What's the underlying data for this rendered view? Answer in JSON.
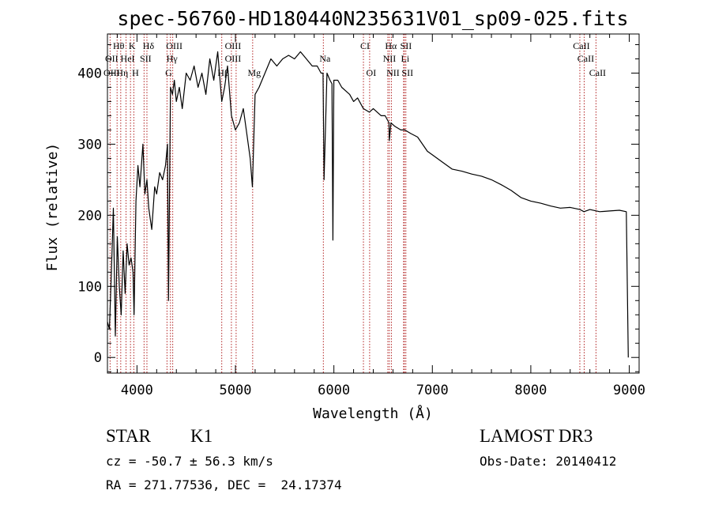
{
  "chart_data": {
    "type": "line",
    "title": "spec-56760-HD180440N235631V01_sp09-025.fits",
    "xlabel": "Wavelength (Å)",
    "ylabel": "Flux (relative)",
    "xlim": [
      3700,
      9100
    ],
    "ylim": [
      -22,
      455
    ],
    "xticks": [
      4000,
      5000,
      6000,
      7000,
      8000,
      9000
    ],
    "yticks": [
      0,
      100,
      200,
      300,
      400
    ],
    "grid": false,
    "series": [
      {
        "name": "Flux",
        "x": [
          3700,
          3720,
          3740,
          3760,
          3780,
          3800,
          3820,
          3840,
          3860,
          3880,
          3900,
          3920,
          3940,
          3960,
          3970,
          3990,
          4010,
          4030,
          4060,
          4080,
          4101,
          4120,
          4150,
          4180,
          4200,
          4230,
          4260,
          4290,
          4310,
          4320,
          4340,
          4360,
          4380,
          4400,
          4430,
          4460,
          4500,
          4540,
          4580,
          4620,
          4660,
          4700,
          4740,
          4780,
          4820,
          4861,
          4890,
          4920,
          4960,
          5000,
          5040,
          5080,
          5120,
          5150,
          5172,
          5200,
          5240,
          5300,
          5360,
          5420,
          5480,
          5540,
          5600,
          5660,
          5720,
          5780,
          5830,
          5870,
          5890,
          5900,
          5930,
          5960,
          5980,
          5990,
          6000,
          6040,
          6080,
          6120,
          6160,
          6200,
          6240,
          6300,
          6360,
          6400,
          6440,
          6480,
          6520,
          6560,
          6563,
          6580,
          6620,
          6680,
          6720,
          6780,
          6850,
          6900,
          6950,
          7000,
          7100,
          7200,
          7300,
          7400,
          7500,
          7600,
          7700,
          7800,
          7900,
          8000,
          8100,
          8200,
          8300,
          8400,
          8500,
          8540,
          8600,
          8700,
          8800,
          8900,
          8970,
          8990
        ],
        "values": [
          50,
          40,
          120,
          210,
          30,
          170,
          100,
          60,
          150,
          90,
          160,
          130,
          140,
          120,
          60,
          220,
          270,
          240,
          300,
          230,
          250,
          210,
          180,
          240,
          230,
          260,
          250,
          270,
          300,
          80,
          380,
          370,
          390,
          360,
          380,
          350,
          400,
          390,
          410,
          380,
          400,
          370,
          420,
          390,
          430,
          360,
          380,
          410,
          340,
          320,
          330,
          350,
          310,
          280,
          240,
          370,
          380,
          400,
          420,
          410,
          420,
          425,
          420,
          430,
          420,
          410,
          410,
          400,
          400,
          250,
          400,
          390,
          385,
          165,
          390,
          390,
          380,
          375,
          370,
          360,
          365,
          350,
          345,
          350,
          345,
          340,
          340,
          330,
          305,
          330,
          325,
          320,
          320,
          315,
          310,
          300,
          290,
          285,
          275,
          265,
          262,
          258,
          255,
          250,
          243,
          235,
          225,
          220,
          217,
          213,
          210,
          211,
          208,
          205,
          208,
          205,
          206,
          207,
          205,
          0
        ]
      }
    ],
    "line_annotations": [
      {
        "label": "Hθ",
        "x": 3798,
        "row": 1
      },
      {
        "label": "K",
        "x": 3934,
        "row": 1
      },
      {
        "label": "Hδ",
        "x": 4101,
        "row": 1
      },
      {
        "label": "OIII",
        "x": 4363,
        "row": 1
      },
      {
        "label": "OIII",
        "x": 4959,
        "row": 1
      },
      {
        "label": "CI",
        "x": 6300,
        "row": 1
      },
      {
        "label": "Hα",
        "x": 6563,
        "row": 1
      },
      {
        "label": "SII",
        "x": 6716,
        "row": 1
      },
      {
        "label": "CaII",
        "x": 8498,
        "row": 1
      },
      {
        "label": "OII",
        "x": 3727,
        "row": 2
      },
      {
        "label": "HeI",
        "x": 3889,
        "row": 2
      },
      {
        "label": "SII",
        "x": 4072,
        "row": 2
      },
      {
        "label": "Hγ",
        "x": 4340,
        "row": 2
      },
      {
        "label": "OIII",
        "x": 4959,
        "row": 2
      },
      {
        "label": "Na",
        "x": 5893,
        "row": 2
      },
      {
        "label": "NII",
        "x": 6548,
        "row": 2
      },
      {
        "label": "Li",
        "x": 6708,
        "row": 2
      },
      {
        "label": "CaII",
        "x": 8542,
        "row": 2
      },
      {
        "label": "OIII",
        "x": 3727,
        "row": 3
      },
      {
        "label": "Hη",
        "x": 3835,
        "row": 3
      },
      {
        "label": "H",
        "x": 3968,
        "row": 3
      },
      {
        "label": "G",
        "x": 4305,
        "row": 3
      },
      {
        "label": "Hβ",
        "x": 4861,
        "row": 3
      },
      {
        "label": "Mg",
        "x": 5175,
        "row": 3
      },
      {
        "label": "OI",
        "x": 6363,
        "row": 3
      },
      {
        "label": "NII",
        "x": 6584,
        "row": 3
      },
      {
        "label": "SII",
        "x": 6731,
        "row": 3
      },
      {
        "label": "CaII",
        "x": 8662,
        "row": 3
      }
    ],
    "line_markers": [
      3727,
      3798,
      3835,
      3889,
      3934,
      3968,
      4072,
      4101,
      4305,
      4340,
      4363,
      4861,
      4959,
      5007,
      5175,
      5893,
      6300,
      6363,
      6548,
      6563,
      6584,
      6708,
      6716,
      6731,
      8498,
      8542,
      8662
    ]
  },
  "caption": {
    "object_class": "STAR",
    "subclass": "K1",
    "survey": "LAMOST DR3",
    "redshift": "cz = -50.7 ± 56.3 km/s",
    "obs_date": "Obs-Date: 20140412",
    "coords": "RA = 271.77536, DEC =  24.17374"
  },
  "colors": {
    "line": "#000000",
    "marker": "#b22222",
    "axis": "#000000"
  }
}
